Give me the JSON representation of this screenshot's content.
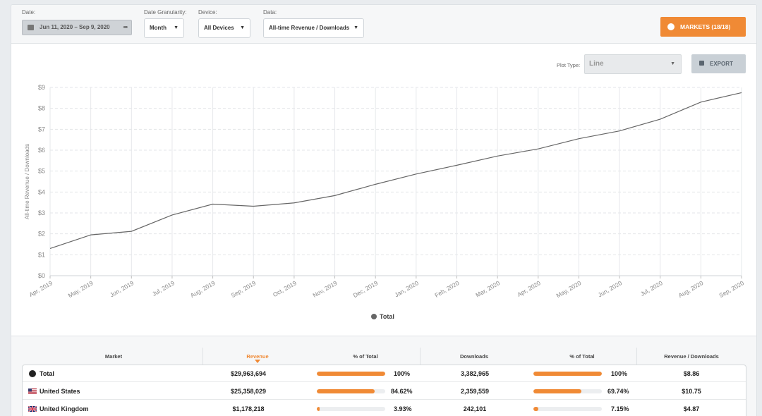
{
  "filters": {
    "date_label": "Date:",
    "date_value": "Jun 11, 2020  –  Sep 9, 2020",
    "date_more": "•••",
    "granularity_label": "Date Granularity:",
    "granularity_value": "Month",
    "device_label": "Device:",
    "device_value": "All Devices",
    "data_label": "Data:",
    "data_value": "All-time Revenue / Downloads",
    "markets_button": "MARKETS (18/18)"
  },
  "plot_controls": {
    "plot_type_label": "Plot Type:",
    "plot_type_value": "Line",
    "export_button": "EXPORT"
  },
  "chart_data": {
    "type": "line",
    "title": "",
    "xlabel": "",
    "ylabel": "All-time Revenue / Downloads",
    "x": [
      "Apr, 2019",
      "May, 2019",
      "Jun, 2019",
      "Jul, 2019",
      "Aug, 2019",
      "Sep, 2019",
      "Oct, 2019",
      "Nov, 2019",
      "Dec, 2019",
      "Jan, 2020",
      "Feb, 2020",
      "Mar, 2020",
      "Apr, 2020",
      "May, 2020",
      "Jun, 2020",
      "Jul, 2020",
      "Aug, 2020",
      "Sep, 2020"
    ],
    "yticks": [
      "$0",
      "$1",
      "$2",
      "$3",
      "$4",
      "$5",
      "$6",
      "$7",
      "$8",
      "$9"
    ],
    "ylim": [
      0,
      9
    ],
    "series": [
      {
        "name": "Total",
        "color": "#666666",
        "values": [
          1.3,
          1.95,
          2.12,
          2.9,
          3.42,
          3.32,
          3.48,
          3.83,
          4.37,
          4.86,
          5.28,
          5.72,
          6.06,
          6.55,
          6.92,
          7.48,
          8.3,
          8.75
        ]
      }
    ],
    "grid": true,
    "legend": "bottom-center"
  },
  "legend": {
    "total": "Total"
  },
  "table": {
    "headers": {
      "market": "Market",
      "revenue": "Revenue",
      "rev_pct": "% of Total",
      "downloads": "Downloads",
      "dl_pct": "% of Total",
      "rpd": "Revenue / Downloads"
    },
    "rows": [
      {
        "market": "Total",
        "revenue": "$29,963,694",
        "rev_pct": "100%",
        "rev_frac": 1.0,
        "downloads": "3,382,965",
        "dl_pct": "100%",
        "dl_frac": 1.0,
        "rpd": "$8.86",
        "icon": "globe-icon"
      },
      {
        "market": "United States",
        "revenue": "$25,358,029",
        "rev_pct": "84.62%",
        "rev_frac": 0.8462,
        "downloads": "2,359,559",
        "dl_pct": "69.74%",
        "dl_frac": 0.6974,
        "rpd": "$10.75",
        "icon": "us-flag-icon"
      },
      {
        "market": "United Kingdom",
        "revenue": "$1,178,218",
        "rev_pct": "3.93%",
        "rev_frac": 0.0393,
        "downloads": "242,101",
        "dl_pct": "7.15%",
        "dl_frac": 0.0715,
        "rpd": "$4.87",
        "icon": "uk-flag-icon"
      }
    ]
  }
}
